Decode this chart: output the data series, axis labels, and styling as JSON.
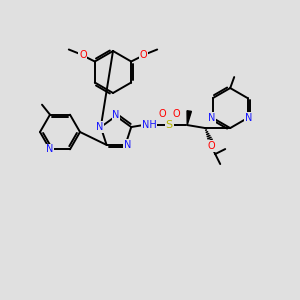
{
  "background_color": "#e0e0e0",
  "figsize": [
    3.0,
    3.0
  ],
  "dpi": 100,
  "colors": {
    "C": "#000000",
    "N": "#1414ff",
    "O": "#ff0000",
    "S": "#b8b800",
    "bond": "#000000"
  }
}
